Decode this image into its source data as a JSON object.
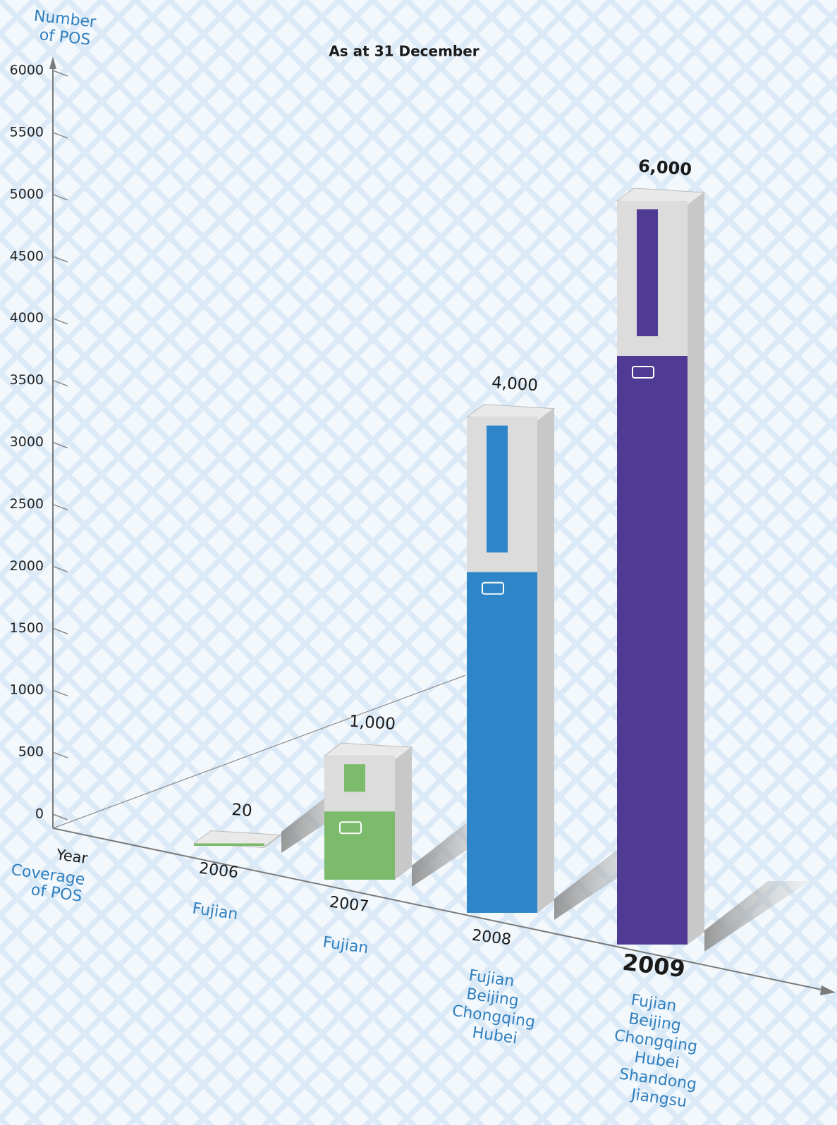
{
  "chart_data": {
    "type": "bar",
    "title": "As at 31 December",
    "y_label": [
      "Number",
      "of POS"
    ],
    "x_label": "Year",
    "coverage_label": [
      "Coverage",
      "of POS"
    ],
    "categories": [
      "2006",
      "2007",
      "2008",
      "2009"
    ],
    "values": [
      20,
      1000,
      4000,
      6000
    ],
    "value_labels": [
      "20",
      "1,000",
      "4,000",
      "6,000"
    ],
    "colors": [
      "#7cbb6b",
      "#7cbb6b",
      "#2e86c8",
      "#4f3a94"
    ],
    "coverage": [
      [
        "Fujian"
      ],
      [
        "Fujian"
      ],
      [
        "Fujian",
        "Beijing",
        "Chongqing",
        "Hubei"
      ],
      [
        "Fujian",
        "Beijing",
        "Chongqing",
        "Hubei",
        "Shandong",
        "Jiangsu"
      ]
    ],
    "ylim": [
      0,
      6000
    ],
    "yticks": [
      0,
      500,
      1000,
      1500,
      2000,
      2500,
      3000,
      3500,
      4000,
      4500,
      5000,
      5500,
      6000
    ]
  }
}
